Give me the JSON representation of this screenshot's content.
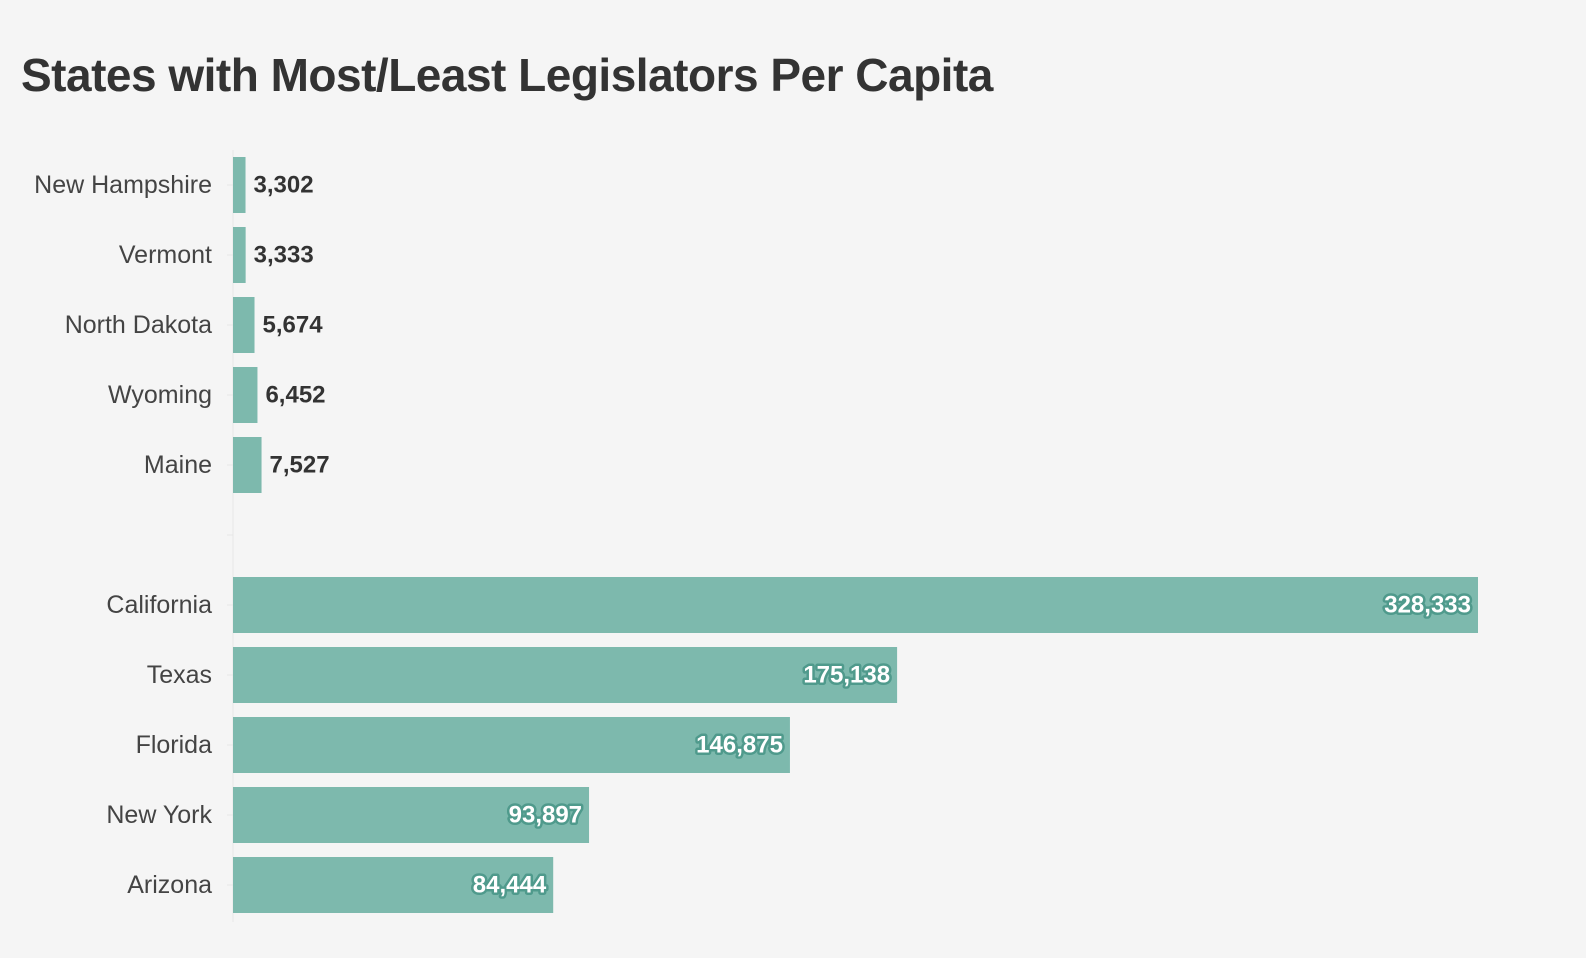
{
  "chart_data": {
    "type": "bar",
    "orientation": "horizontal",
    "title": "States with Most/Least Legislators Per Capita",
    "categories": [
      "New Hampshire",
      "Vermont",
      "North Dakota",
      "Wyoming",
      "Maine",
      "",
      "California",
      "Texas",
      "Florida",
      "New York",
      "Arizona"
    ],
    "values": [
      3302,
      3333,
      5674,
      6452,
      7527,
      null,
      328333,
      175138,
      146875,
      93897,
      84444
    ],
    "value_labels": [
      "3,302",
      "3,333",
      "5,674",
      "6,452",
      "7,527",
      "",
      "328,333",
      "175,138",
      "146,875",
      "93,897",
      "84,444"
    ],
    "xlim": [
      0,
      328333
    ],
    "bar_color": "#7db9ad",
    "xlabel": "",
    "ylabel": "",
    "grid": false,
    "legend": "none"
  }
}
